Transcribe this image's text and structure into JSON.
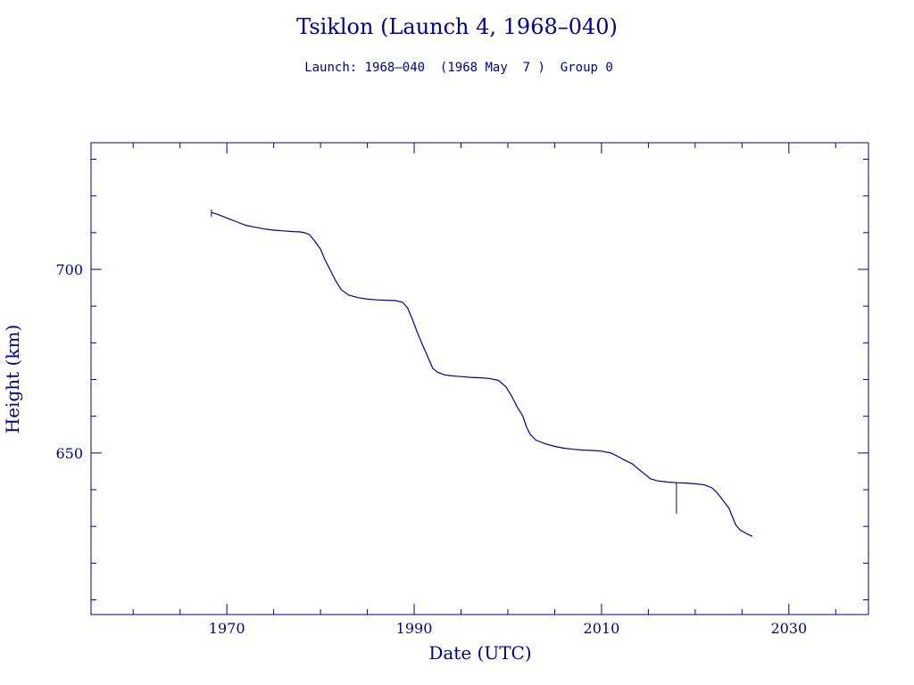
{
  "chart_data": {
    "type": "line",
    "title": "Tsiklon (Launch 4, 1968–040)",
    "subtitle": "Launch: 1968–040  (1968 May  7 )  Group 0",
    "xlabel": "Date (UTC)",
    "ylabel": "Height (km)",
    "xlim": [
      1955.5,
      2038.5
    ],
    "ylim": [
      606,
      734.5
    ],
    "x_ticks": [
      {
        "value": 1970,
        "label": "1970"
      },
      {
        "value": 1990,
        "label": "1990"
      },
      {
        "value": 2010,
        "label": "2010"
      },
      {
        "value": 2030,
        "label": "2030"
      }
    ],
    "y_ticks": [
      {
        "value": 700,
        "label": "700"
      },
      {
        "value": 650,
        "label": "650"
      }
    ],
    "grid": false,
    "legend": "none",
    "color": "#00008b",
    "series": [
      {
        "x": [
          1968.35,
          1969.0,
          1970.0,
          1971.0,
          1972.0,
          1973.0,
          1974.0,
          1975.0,
          1976.0,
          1977.0,
          1977.8,
          1978.3,
          1978.8,
          1979.3,
          1980.0,
          1980.5,
          1981.0,
          1981.6,
          1982.2,
          1983.0,
          1984.0,
          1985.0,
          1986.0,
          1987.0,
          1988.0,
          1988.8,
          1989.3,
          1989.8,
          1990.3,
          1990.8,
          1991.4,
          1992.0,
          1992.5,
          1993.2,
          1994.0,
          1995.0,
          1996.0,
          1997.0,
          1998.0,
          1999.0,
          1999.8,
          2000.4,
          2001.0,
          2001.6,
          2002.0,
          2002.4,
          2003.0,
          2004.0,
          2005.0,
          2006.0,
          2007.0,
          2008.0,
          2009.0,
          2010.0,
          2011.0,
          2011.8,
          2012.5,
          2013.3,
          2014.0,
          2014.6,
          2015.2,
          2016.0,
          2017.0,
          2018.0,
          2019.0,
          2020.0,
          2021.0,
          2021.8,
          2022.4,
          2023.0,
          2023.6,
          2024.0,
          2024.3,
          2024.8,
          2025.5,
          2026.1
        ],
        "y": [
          715.5,
          715.0,
          714.0,
          713.0,
          712.0,
          711.5,
          711.0,
          710.7,
          710.5,
          710.3,
          710.2,
          710.0,
          709.5,
          708.0,
          705.5,
          702.5,
          700.0,
          697.0,
          694.5,
          693.0,
          692.3,
          691.9,
          691.7,
          691.6,
          691.5,
          691.0,
          689.5,
          686.5,
          683.0,
          680.0,
          676.5,
          673.0,
          672.0,
          671.3,
          671.0,
          670.8,
          670.6,
          670.5,
          670.3,
          669.8,
          668.0,
          665.5,
          662.5,
          660.0,
          657.0,
          655.0,
          653.5,
          652.5,
          651.8,
          651.3,
          651.0,
          650.8,
          650.7,
          650.5,
          650.0,
          649.0,
          648.0,
          647.0,
          645.5,
          644.3,
          643.0,
          642.4,
          642.1,
          641.9,
          641.8,
          641.6,
          641.3,
          640.5,
          639.0,
          637.0,
          635.0,
          632.5,
          630.5,
          629.0,
          628.0,
          627.3
        ],
        "spikes": [
          {
            "x": 1968.35,
            "y_from": 714.3,
            "y_to": 716.3
          },
          {
            "x": 2018.0,
            "y_from": 633.5,
            "y_to": 642.0
          }
        ]
      }
    ]
  }
}
